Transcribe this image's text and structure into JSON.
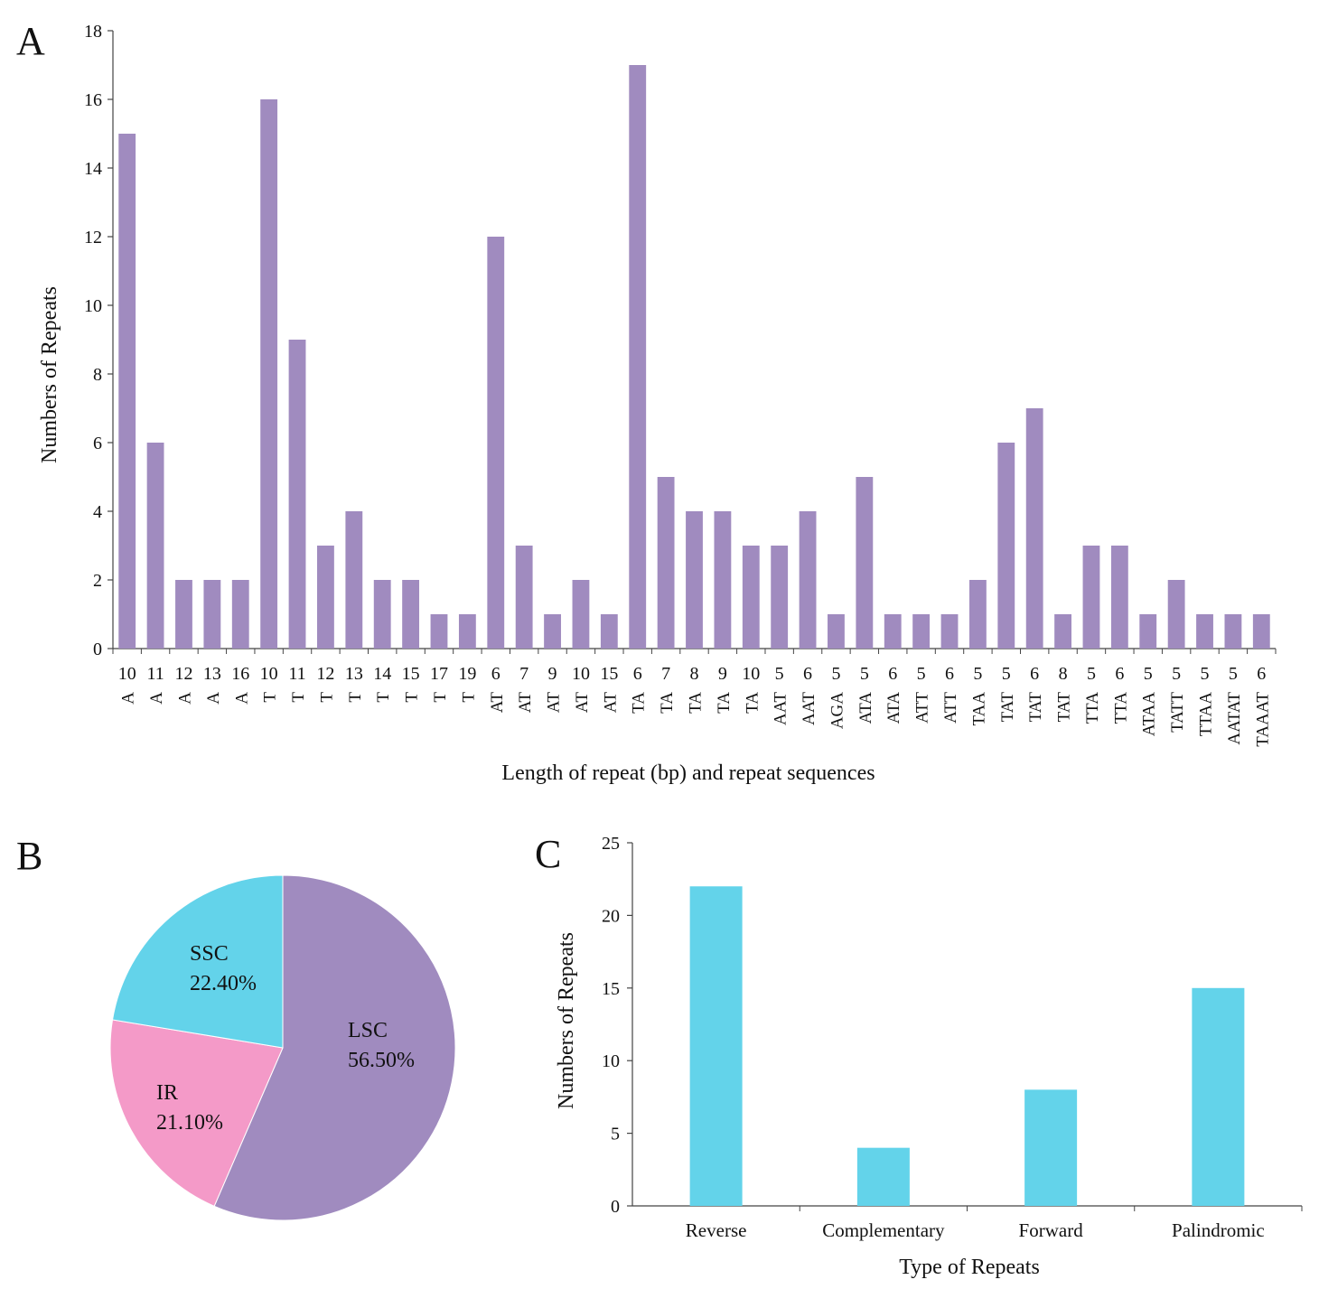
{
  "chart_data": [
    {
      "panel": "A",
      "type": "bar",
      "title": "",
      "ylabel": "Numbers of Repeats",
      "xlabel": "Length of repeat (bp) and repeat sequences",
      "ylim": [
        0,
        18
      ],
      "yticks": [
        0,
        2,
        4,
        6,
        8,
        10,
        12,
        14,
        16,
        18
      ],
      "categories": [
        {
          "length": "10",
          "sequence": "A"
        },
        {
          "length": "11",
          "sequence": "A"
        },
        {
          "length": "12",
          "sequence": "A"
        },
        {
          "length": "13",
          "sequence": "A"
        },
        {
          "length": "16",
          "sequence": "A"
        },
        {
          "length": "10",
          "sequence": "T"
        },
        {
          "length": "11",
          "sequence": "T"
        },
        {
          "length": "12",
          "sequence": "T"
        },
        {
          "length": "13",
          "sequence": "T"
        },
        {
          "length": "14",
          "sequence": "T"
        },
        {
          "length": "15",
          "sequence": "T"
        },
        {
          "length": "17",
          "sequence": "T"
        },
        {
          "length": "19",
          "sequence": "T"
        },
        {
          "length": "6",
          "sequence": "AT"
        },
        {
          "length": "7",
          "sequence": "AT"
        },
        {
          "length": "9",
          "sequence": "AT"
        },
        {
          "length": "10",
          "sequence": "AT"
        },
        {
          "length": "15",
          "sequence": "AT"
        },
        {
          "length": "6",
          "sequence": "TA"
        },
        {
          "length": "7",
          "sequence": "TA"
        },
        {
          "length": "8",
          "sequence": "TA"
        },
        {
          "length": "9",
          "sequence": "TA"
        },
        {
          "length": "10",
          "sequence": "TA"
        },
        {
          "length": "5",
          "sequence": "AAT"
        },
        {
          "length": "6",
          "sequence": "AAT"
        },
        {
          "length": "5",
          "sequence": "AGA"
        },
        {
          "length": "5",
          "sequence": "ATA"
        },
        {
          "length": "6",
          "sequence": "ATA"
        },
        {
          "length": "5",
          "sequence": "ATT"
        },
        {
          "length": "6",
          "sequence": "ATT"
        },
        {
          "length": "5",
          "sequence": "TAA"
        },
        {
          "length": "5",
          "sequence": "TAT"
        },
        {
          "length": "6",
          "sequence": "TAT"
        },
        {
          "length": "8",
          "sequence": "TAT"
        },
        {
          "length": "5",
          "sequence": "TTA"
        },
        {
          "length": "6",
          "sequence": "TTA"
        },
        {
          "length": "5",
          "sequence": "ATAA"
        },
        {
          "length": "5",
          "sequence": "TATT"
        },
        {
          "length": "5",
          "sequence": "TTAA"
        },
        {
          "length": "5",
          "sequence": "AATAT"
        },
        {
          "length": "6",
          "sequence": "TAAAT"
        }
      ],
      "values": [
        15,
        6,
        2,
        2,
        2,
        16,
        9,
        3,
        4,
        2,
        2,
        1,
        1,
        12,
        3,
        1,
        2,
        1,
        17,
        5,
        4,
        4,
        3,
        3,
        4,
        1,
        5,
        1,
        1,
        1,
        2,
        6,
        7,
        1,
        3,
        3,
        1,
        2,
        1,
        1,
        1
      ],
      "color": "#A08BBF"
    },
    {
      "panel": "B",
      "type": "pie",
      "slices": [
        {
          "label": "LSC",
          "value": 56.5,
          "value_text": "56.50%",
          "color": "#A08BBF"
        },
        {
          "label": "IR",
          "value": 21.1,
          "value_text": "21.10%",
          "color": "#F49AC8"
        },
        {
          "label": "SSC",
          "value": 22.4,
          "value_text": "22.40%",
          "color": "#63D3EA"
        }
      ]
    },
    {
      "panel": "C",
      "type": "bar",
      "title": "",
      "ylabel": "Numbers of Repeats",
      "xlabel": "Type of Repeats",
      "ylim": [
        0,
        25
      ],
      "yticks": [
        0,
        5,
        10,
        15,
        20,
        25
      ],
      "categories": [
        "Reverse",
        "Complementary",
        "Forward",
        "Palindromic"
      ],
      "values": [
        22,
        4,
        8,
        15
      ],
      "color": "#63D3EA"
    }
  ]
}
